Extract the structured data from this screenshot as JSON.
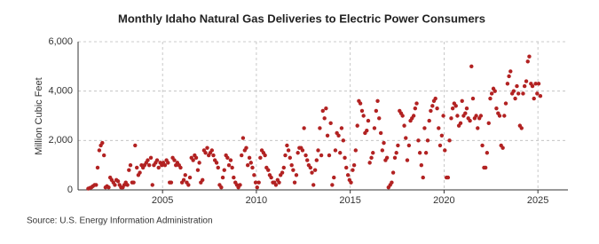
{
  "chart_data": {
    "type": "scatter",
    "title": "Monthly Idaho Natural Gas Deliveries to Electric Power Consumers",
    "y_label": "Million Cubic Feet",
    "source": "Source: U.S. Energy Information Administration",
    "color": "#b22222",
    "grid": true,
    "xlim": [
      2000.5,
      2026.6
    ],
    "xticks": [
      2005,
      2010,
      2015,
      2020,
      2025
    ],
    "ylim": [
      0,
      6000
    ],
    "yticks": [
      0,
      {
        "value": 2000,
        "label": "2,000"
      },
      {
        "value": 4000,
        "label": "4,000"
      },
      {
        "value": 6000,
        "label": "6,000"
      }
    ],
    "x": [
      2001.04,
      2001.13,
      2001.21,
      2001.29,
      2001.38,
      2001.46,
      2001.54,
      2001.63,
      2001.71,
      2001.79,
      2001.88,
      2001.96,
      2002.04,
      2002.13,
      2002.21,
      2002.29,
      2002.38,
      2002.46,
      2002.54,
      2002.63,
      2002.71,
      2002.79,
      2002.88,
      2002.96,
      2003.04,
      2003.13,
      2003.21,
      2003.29,
      2003.38,
      2003.46,
      2003.54,
      2003.63,
      2003.71,
      2003.79,
      2003.88,
      2003.96,
      2004.04,
      2004.13,
      2004.21,
      2004.29,
      2004.38,
      2004.46,
      2004.54,
      2004.63,
      2004.71,
      2004.79,
      2004.88,
      2004.96,
      2005.04,
      2005.13,
      2005.21,
      2005.29,
      2005.38,
      2005.46,
      2005.54,
      2005.63,
      2005.71,
      2005.79,
      2005.88,
      2005.96,
      2006.04,
      2006.13,
      2006.21,
      2006.29,
      2006.38,
      2006.46,
      2006.54,
      2006.63,
      2006.71,
      2006.79,
      2006.88,
      2006.96,
      2007.04,
      2007.13,
      2007.21,
      2007.29,
      2007.38,
      2007.46,
      2007.54,
      2007.63,
      2007.71,
      2007.79,
      2007.88,
      2007.96,
      2008.04,
      2008.13,
      2008.21,
      2008.29,
      2008.38,
      2008.46,
      2008.54,
      2008.63,
      2008.71,
      2008.79,
      2008.88,
      2008.96,
      2009.04,
      2009.13,
      2009.21,
      2009.29,
      2009.38,
      2009.46,
      2009.54,
      2009.63,
      2009.71,
      2009.79,
      2009.88,
      2009.96,
      2010.04,
      2010.13,
      2010.21,
      2010.29,
      2010.38,
      2010.46,
      2010.54,
      2010.63,
      2010.71,
      2010.79,
      2010.88,
      2010.96,
      2011.04,
      2011.13,
      2011.21,
      2011.29,
      2011.38,
      2011.46,
      2011.54,
      2011.63,
      2011.71,
      2011.79,
      2011.88,
      2011.96,
      2012.04,
      2012.13,
      2012.21,
      2012.29,
      2012.38,
      2012.46,
      2012.54,
      2012.63,
      2012.71,
      2012.79,
      2012.88,
      2012.96,
      2013.04,
      2013.13,
      2013.21,
      2013.29,
      2013.38,
      2013.46,
      2013.54,
      2013.63,
      2013.71,
      2013.79,
      2013.88,
      2013.96,
      2014.04,
      2014.13,
      2014.21,
      2014.29,
      2014.38,
      2014.46,
      2014.54,
      2014.63,
      2014.71,
      2014.79,
      2014.88,
      2014.96,
      2015.04,
      2015.13,
      2015.21,
      2015.29,
      2015.38,
      2015.46,
      2015.54,
      2015.63,
      2015.71,
      2015.79,
      2015.88,
      2015.96,
      2016.04,
      2016.13,
      2016.21,
      2016.29,
      2016.38,
      2016.46,
      2016.54,
      2016.63,
      2016.71,
      2016.79,
      2016.88,
      2016.96,
      2017.04,
      2017.13,
      2017.21,
      2017.29,
      2017.38,
      2017.46,
      2017.54,
      2017.63,
      2017.71,
      2017.79,
      2017.88,
      2017.96,
      2018.04,
      2018.13,
      2018.21,
      2018.29,
      2018.38,
      2018.46,
      2018.54,
      2018.63,
      2018.71,
      2018.79,
      2018.88,
      2018.96,
      2019.04,
      2019.13,
      2019.21,
      2019.29,
      2019.38,
      2019.46,
      2019.54,
      2019.63,
      2019.71,
      2019.79,
      2019.88,
      2019.96,
      2020.04,
      2020.13,
      2020.21,
      2020.29,
      2020.38,
      2020.46,
      2020.54,
      2020.63,
      2020.71,
      2020.79,
      2020.88,
      2020.96,
      2021.04,
      2021.13,
      2021.21,
      2021.29,
      2021.38,
      2021.46,
      2021.54,
      2021.63,
      2021.71,
      2021.79,
      2021.88,
      2021.96,
      2022.04,
      2022.13,
      2022.21,
      2022.29,
      2022.38,
      2022.46,
      2022.54,
      2022.63,
      2022.71,
      2022.79,
      2022.88,
      2022.96,
      2023.04,
      2023.13,
      2023.21,
      2023.29,
      2023.38,
      2023.46,
      2023.54,
      2023.63,
      2023.71,
      2023.79,
      2023.88,
      2023.96,
      2024.04,
      2024.13,
      2024.21,
      2024.29,
      2024.38,
      2024.46,
      2024.54,
      2024.63,
      2024.71,
      2024.79,
      2024.88,
      2024.96,
      2025.04,
      2025.13
    ],
    "values": [
      50,
      80,
      100,
      150,
      200,
      200,
      900,
      1600,
      1800,
      1900,
      1400,
      100,
      150,
      100,
      500,
      400,
      300,
      200,
      400,
      350,
      200,
      100,
      100,
      200,
      300,
      200,
      800,
      1000,
      300,
      300,
      1800,
      900,
      600,
      700,
      1000,
      900,
      1000,
      1100,
      1200,
      1000,
      1300,
      200,
      1000,
      1100,
      1200,
      900,
      1100,
      1000,
      1100,
      1000,
      1200,
      1100,
      300,
      300,
      1300,
      1200,
      1000,
      1100,
      1000,
      900,
      300,
      400,
      600,
      300,
      200,
      500,
      1300,
      1200,
      1400,
      1300,
      800,
      1100,
      300,
      400,
      1600,
      1500,
      1700,
      1400,
      1500,
      1600,
      1400,
      1200,
      1100,
      900,
      200,
      100,
      500,
      800,
      1400,
      1300,
      1000,
      1200,
      900,
      500,
      300,
      200,
      100,
      200,
      1400,
      2100,
      1600,
      1700,
      1000,
      1300,
      1100,
      900,
      600,
      300,
      100,
      300,
      1300,
      1600,
      1500,
      1400,
      900,
      800,
      600,
      500,
      300,
      300,
      200,
      400,
      300,
      600,
      700,
      900,
      1400,
      1800,
      1600,
      1300,
      1000,
      800,
      300,
      600,
      1500,
      1700,
      1700,
      1600,
      2500,
      1400,
      1200,
      1000,
      900,
      700,
      200,
      800,
      1200,
      1600,
      2500,
      1400,
      3200,
      2900,
      3300,
      2200,
      1400,
      2700,
      200,
      500,
      1600,
      2300,
      2200,
      1500,
      2500,
      2000,
      1300,
      900,
      600,
      400,
      300,
      800,
      1000,
      1600,
      2600,
      3600,
      3500,
      3200,
      3000,
      2300,
      2400,
      2800,
      1100,
      1300,
      1500,
      2500,
      3200,
      3600,
      2900,
      2300,
      1600,
      1900,
      1200,
      1300,
      100,
      200,
      300,
      700,
      1300,
      1500,
      1800,
      3200,
      3100,
      3000,
      2600,
      2100,
      1200,
      1800,
      2800,
      2900,
      3000,
      3300,
      3500,
      2000,
      1500,
      1000,
      500,
      2500,
      1500,
      2000,
      2800,
      3200,
      3400,
      3600,
      3700,
      3300,
      2500,
      1800,
      2200,
      3000,
      1600,
      500,
      500,
      2000,
      2900,
      3300,
      3500,
      3400,
      3000,
      2600,
      2700,
      3600,
      3000,
      3100,
      3300,
      2900,
      2800,
      5000,
      3700,
      2900,
      3000,
      2500,
      2900,
      3000,
      1800,
      900,
      900,
      1500,
      2700,
      3700,
      3900,
      4100,
      4000,
      3300,
      3100,
      3000,
      1800,
      1700,
      3000,
      3500,
      4300,
      4600,
      4800,
      3900,
      4000,
      3700,
      4200,
      3900,
      2600,
      2500,
      3900,
      4200,
      4400,
      5200,
      5400,
      4300,
      4200,
      3700,
      4300,
      3900,
      4300,
      3800
    ]
  }
}
